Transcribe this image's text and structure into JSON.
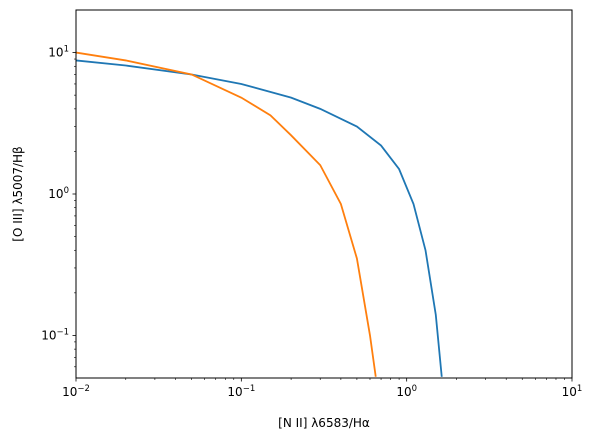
{
  "chart_data": {
    "type": "line",
    "xscale": "log",
    "yscale": "log",
    "xlim": [
      0.01,
      10
    ],
    "ylim": [
      0.05,
      20
    ],
    "grid": false,
    "xlabel_text": "[N II] λ6583/Hα",
    "ylabel_text": "[O III] λ5007/Hβ",
    "xticks": [
      {
        "value": 0.01,
        "base": "10",
        "exp": "−2"
      },
      {
        "value": 0.1,
        "base": "10",
        "exp": "−1"
      },
      {
        "value": 1,
        "base": "10",
        "exp": "0"
      },
      {
        "value": 10,
        "base": "10",
        "exp": "1"
      }
    ],
    "yticks": [
      {
        "value": 0.1,
        "base": "10",
        "exp": "−1"
      },
      {
        "value": 1,
        "base": "10",
        "exp": "0"
      },
      {
        "value": 10,
        "base": "10",
        "exp": "1"
      }
    ],
    "series": [
      {
        "color": "#1f77b4",
        "x": [
          0.01,
          0.02,
          0.05,
          0.1,
          0.2,
          0.3,
          0.5,
          0.7,
          0.9,
          1.1,
          1.3,
          1.5,
          1.63
        ],
        "y": [
          8.8,
          8.1,
          7.0,
          6.0,
          4.8,
          4.0,
          3.0,
          2.2,
          1.5,
          0.85,
          0.4,
          0.14,
          0.051
        ]
      },
      {
        "color": "#ff7f0e",
        "x": [
          0.01,
          0.02,
          0.05,
          0.1,
          0.15,
          0.2,
          0.3,
          0.4,
          0.5,
          0.6,
          0.65
        ],
        "y": [
          10.0,
          8.8,
          7.0,
          4.8,
          3.6,
          2.6,
          1.6,
          0.85,
          0.35,
          0.1,
          0.051
        ]
      }
    ]
  }
}
